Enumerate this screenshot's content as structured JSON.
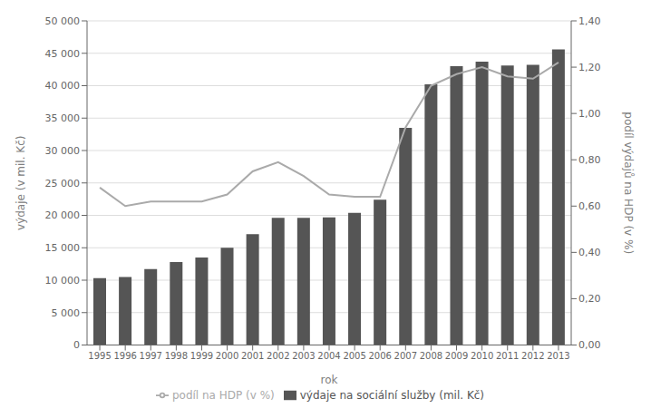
{
  "chart_data": {
    "type": "bar",
    "xlabel": "rok",
    "ylabel": "výdaje (v mil. Kč)",
    "y2label": "podíl výdajů  na HDP (v %)",
    "categories": [
      "1995",
      "1996",
      "1997",
      "1998",
      "1999",
      "2000",
      "2001",
      "2002",
      "2003",
      "2004",
      "2005",
      "2006",
      "2007",
      "2008",
      "2009",
      "2010",
      "2011",
      "2012",
      "2013"
    ],
    "series": [
      {
        "name": "výdaje na sociální služby (mil. Kč)",
        "type": "bar",
        "color": "#555555",
        "values": [
          10300,
          10500,
          11700,
          12800,
          13500,
          15000,
          17100,
          19600,
          19600,
          19700,
          20400,
          22400,
          33500,
          40200,
          43000,
          43700,
          43100,
          43200,
          45600
        ]
      },
      {
        "name": "podíl na HDP (v %)",
        "type": "line",
        "axis": "y2",
        "color": "#aaaaaa",
        "values": [
          0.68,
          0.6,
          0.62,
          0.62,
          0.62,
          0.65,
          0.75,
          0.79,
          0.73,
          0.65,
          0.64,
          0.64,
          0.94,
          1.12,
          1.17,
          1.2,
          1.16,
          1.15,
          1.22
        ]
      }
    ],
    "ylim": [
      0,
      50000
    ],
    "yticks": [
      0,
      {
        "value": 5000,
        "label": "5 000"
      },
      {
        "value": 10000,
        "label": "10 000"
      },
      {
        "value": 15000,
        "label": "15 000"
      },
      {
        "value": 20000,
        "label": "20 000"
      },
      {
        "value": 25000,
        "label": "25 000"
      },
      {
        "value": 30000,
        "label": "30 000"
      },
      {
        "value": 35000,
        "label": "35 000"
      },
      {
        "value": 40000,
        "label": "40 000"
      },
      {
        "value": 45000,
        "label": "45 000"
      },
      {
        "value": 50000,
        "label": "50 000"
      }
    ],
    "y2lim": [
      0.0,
      1.4
    ],
    "y2ticks": [
      {
        "value": 0.0,
        "label": "0,00"
      },
      {
        "value": 0.2,
        "label": "0,20"
      },
      {
        "value": 0.4,
        "label": "0,40"
      },
      {
        "value": 0.6,
        "label": "0,60"
      },
      {
        "value": 0.8,
        "label": "0,80"
      },
      {
        "value": 1.0,
        "label": "1,00"
      },
      {
        "value": 1.2,
        "label": "1,20"
      },
      {
        "value": 1.4,
        "label": "1,40"
      }
    ],
    "grid": true,
    "legend": "bottom"
  }
}
